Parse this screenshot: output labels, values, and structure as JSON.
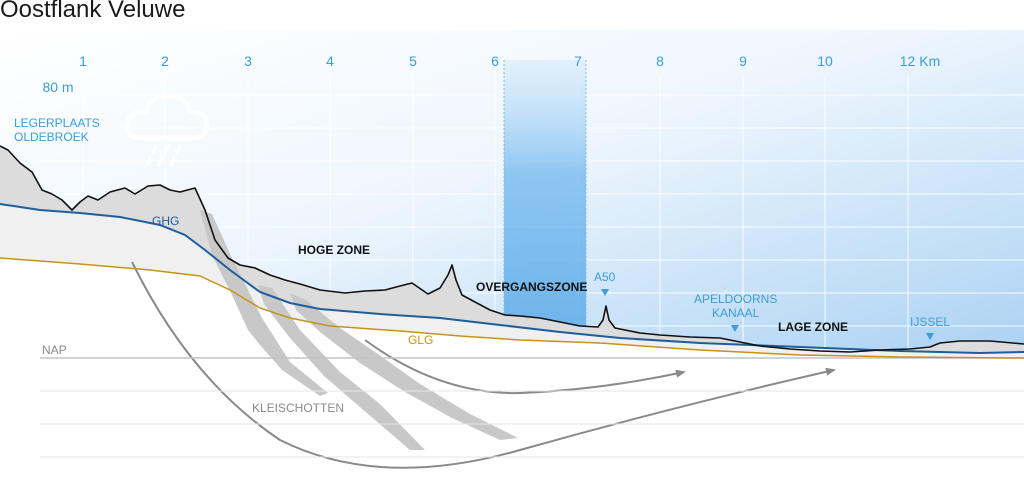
{
  "title": "Oostflank Veluwe",
  "axis": {
    "elevation_label": "80 m",
    "km_ticks": [
      "1",
      "2",
      "3",
      "4",
      "5",
      "6",
      "7",
      "8",
      "9",
      "10",
      "12 Km"
    ],
    "nap_label": "NAP"
  },
  "labels": {
    "legerplaats_line1": "LEGERPLAATS",
    "legerplaats_line2": "OLDEBROEK",
    "ghg": "GHG",
    "glg": "GLG",
    "hoge_zone": "HOGE ZONE",
    "overgangszone": "OVERGANGSZONE",
    "a50": "A50",
    "apeldoorns_line1": "APELDOORNS",
    "apeldoorns_line2": "KANAAL",
    "lage_zone": "LAGE ZONE",
    "ijssel": "IJSSEL",
    "kleischotten": "KLEISCHOTTEN"
  },
  "icons": {
    "rain": "rain-cloud-icon",
    "marker": "triangle-down-marker-icon"
  },
  "colors": {
    "sky_blue": "#3b9ddd",
    "ghg_line": "#1f5e9c",
    "glg_line": "#c8921a",
    "terrain": "#111111",
    "clay": "#c8c8c8",
    "flow_arrow": "#8a8a8a"
  }
}
